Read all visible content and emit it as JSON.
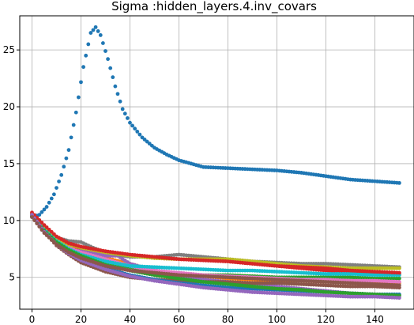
{
  "chart_data": {
    "type": "scatter",
    "title": "Sigma :hidden_layers.4.inv_covars",
    "xlabel": "",
    "ylabel": "",
    "xlim": [
      -5,
      156
    ],
    "ylim": [
      2.2,
      28.0
    ],
    "xticks": [
      0,
      20,
      40,
      60,
      80,
      100,
      120,
      140
    ],
    "yticks": [
      5,
      10,
      15,
      20,
      25
    ],
    "grid": true,
    "series": [
      {
        "color": "#1f77b4",
        "points": [
          [
            0,
            10.3
          ],
          [
            3,
            10.5
          ],
          [
            6,
            11.2
          ],
          [
            9,
            12.3
          ],
          [
            12,
            14
          ],
          [
            15,
            16.2
          ],
          [
            18,
            19.5
          ],
          [
            21,
            23.5
          ],
          [
            24,
            26.5
          ],
          [
            26,
            27.0
          ],
          [
            28,
            26.3
          ],
          [
            31,
            24.2
          ],
          [
            34,
            21.8
          ],
          [
            37,
            19.8
          ],
          [
            40,
            18.6
          ],
          [
            45,
            17.3
          ],
          [
            50,
            16.4
          ],
          [
            55,
            15.8
          ],
          [
            60,
            15.3
          ],
          [
            70,
            14.7
          ],
          [
            80,
            14.6
          ],
          [
            90,
            14.5
          ],
          [
            100,
            14.4
          ],
          [
            110,
            14.2
          ],
          [
            120,
            13.9
          ],
          [
            130,
            13.6
          ],
          [
            140,
            13.45
          ],
          [
            150,
            13.3
          ]
        ]
      },
      {
        "color": "#ff7f0e",
        "points": [
          [
            0,
            10.6
          ],
          [
            5,
            9.3
          ],
          [
            10,
            8.3
          ],
          [
            15,
            7.7
          ],
          [
            20,
            7.3
          ],
          [
            30,
            6.7
          ],
          [
            40,
            6.2
          ],
          [
            50,
            5.6
          ],
          [
            60,
            5.3
          ],
          [
            70,
            5.1
          ],
          [
            80,
            4.9
          ],
          [
            90,
            4.8
          ],
          [
            100,
            4.7
          ],
          [
            110,
            4.7
          ],
          [
            120,
            4.6
          ],
          [
            130,
            4.6
          ],
          [
            140,
            4.5
          ],
          [
            150,
            4.5
          ]
        ]
      },
      {
        "color": "#2ca02c",
        "points": [
          [
            0,
            10.5
          ],
          [
            5,
            9.2
          ],
          [
            10,
            8.2
          ],
          [
            15,
            7.6
          ],
          [
            20,
            7.1
          ],
          [
            30,
            6.4
          ],
          [
            40,
            5.9
          ],
          [
            50,
            5.6
          ],
          [
            60,
            5.3
          ],
          [
            70,
            5.2
          ],
          [
            80,
            5.2
          ],
          [
            90,
            5.1
          ],
          [
            100,
            5.0
          ],
          [
            110,
            5.0
          ],
          [
            120,
            5.0
          ],
          [
            130,
            5.0
          ],
          [
            140,
            4.9
          ],
          [
            150,
            4.9
          ]
        ]
      },
      {
        "color": "#d62728",
        "points": [
          [
            0,
            10.5
          ],
          [
            5,
            9.3
          ],
          [
            10,
            8.3
          ],
          [
            15,
            7.8
          ],
          [
            20,
            7.5
          ],
          [
            30,
            7.2
          ],
          [
            40,
            6.9
          ],
          [
            50,
            6.7
          ],
          [
            60,
            6.6
          ],
          [
            70,
            6.5
          ],
          [
            80,
            6.4
          ],
          [
            90,
            6.2
          ],
          [
            100,
            6.0
          ],
          [
            110,
            5.8
          ],
          [
            120,
            5.6
          ],
          [
            130,
            5.5
          ],
          [
            140,
            5.4
          ],
          [
            150,
            5.3
          ]
        ]
      },
      {
        "color": "#9467bd",
        "points": [
          [
            0,
            10.4
          ],
          [
            5,
            9.1
          ],
          [
            10,
            8.1
          ],
          [
            15,
            7.4
          ],
          [
            20,
            7.3
          ],
          [
            30,
            6.9
          ],
          [
            35,
            6.9
          ],
          [
            40,
            6.2
          ],
          [
            50,
            5.6
          ],
          [
            60,
            5.1
          ],
          [
            70,
            4.8
          ],
          [
            80,
            4.6
          ],
          [
            90,
            4.4
          ],
          [
            100,
            4.2
          ],
          [
            110,
            4.0
          ],
          [
            120,
            3.8
          ],
          [
            130,
            3.6
          ],
          [
            140,
            3.5
          ],
          [
            150,
            3.4
          ]
        ]
      },
      {
        "color": "#8c564b",
        "points": [
          [
            0,
            10.5
          ],
          [
            5,
            9.0
          ],
          [
            10,
            7.8
          ],
          [
            15,
            7.0
          ],
          [
            20,
            6.3
          ],
          [
            30,
            5.5
          ],
          [
            40,
            5.0
          ],
          [
            50,
            4.8
          ],
          [
            60,
            4.7
          ],
          [
            70,
            4.6
          ],
          [
            80,
            4.6
          ],
          [
            90,
            4.5
          ],
          [
            100,
            4.5
          ],
          [
            110,
            4.4
          ],
          [
            120,
            4.3
          ],
          [
            130,
            4.2
          ],
          [
            140,
            4.2
          ],
          [
            150,
            4.1
          ]
        ]
      },
      {
        "color": "#e377c2",
        "points": [
          [
            0,
            10.6
          ],
          [
            5,
            9.3
          ],
          [
            10,
            8.3
          ],
          [
            15,
            7.6
          ],
          [
            20,
            7.2
          ],
          [
            30,
            6.6
          ],
          [
            40,
            6.0
          ],
          [
            50,
            5.6
          ],
          [
            60,
            5.4
          ],
          [
            70,
            5.2
          ],
          [
            80,
            5.1
          ],
          [
            90,
            5.0
          ],
          [
            100,
            4.9
          ],
          [
            110,
            4.8
          ],
          [
            120,
            4.8
          ],
          [
            130,
            4.7
          ],
          [
            140,
            4.7
          ],
          [
            150,
            4.6
          ]
        ]
      },
      {
        "color": "#7f7f7f",
        "points": [
          [
            0,
            10.5
          ],
          [
            5,
            9.4
          ],
          [
            10,
            8.5
          ],
          [
            15,
            8.2
          ],
          [
            20,
            8.1
          ],
          [
            25,
            7.6
          ],
          [
            30,
            7.2
          ],
          [
            40,
            6.8
          ],
          [
            50,
            6.8
          ],
          [
            60,
            7.0
          ],
          [
            70,
            6.8
          ],
          [
            80,
            6.6
          ],
          [
            90,
            6.4
          ],
          [
            100,
            6.3
          ],
          [
            110,
            6.2
          ],
          [
            120,
            6.2
          ],
          [
            130,
            6.1
          ],
          [
            140,
            6.0
          ],
          [
            150,
            5.9
          ]
        ]
      },
      {
        "color": "#bcbd22",
        "points": [
          [
            0,
            10.6
          ],
          [
            5,
            9.4
          ],
          [
            10,
            8.4
          ],
          [
            15,
            7.9
          ],
          [
            20,
            7.6
          ],
          [
            30,
            7.2
          ],
          [
            40,
            6.9
          ],
          [
            50,
            6.7
          ],
          [
            60,
            6.6
          ],
          [
            70,
            6.6
          ],
          [
            80,
            6.6
          ],
          [
            90,
            6.4
          ],
          [
            100,
            6.2
          ],
          [
            110,
            6.0
          ],
          [
            120,
            5.9
          ],
          [
            130,
            5.8
          ],
          [
            140,
            5.8
          ],
          [
            150,
            5.8
          ]
        ]
      },
      {
        "color": "#17becf",
        "points": [
          [
            0,
            10.4
          ],
          [
            5,
            9.2
          ],
          [
            10,
            8.2
          ],
          [
            15,
            7.5
          ],
          [
            20,
            7.0
          ],
          [
            30,
            6.4
          ],
          [
            40,
            6.0
          ],
          [
            50,
            5.9
          ],
          [
            60,
            5.8
          ],
          [
            70,
            5.7
          ],
          [
            80,
            5.6
          ],
          [
            90,
            5.6
          ],
          [
            100,
            5.5
          ],
          [
            110,
            5.4
          ],
          [
            120,
            5.3
          ],
          [
            130,
            5.3
          ],
          [
            140,
            5.2
          ],
          [
            150,
            5.2
          ]
        ]
      },
      {
        "color": "#1f77b4",
        "points": [
          [
            0,
            10.5
          ],
          [
            5,
            9.1
          ],
          [
            10,
            8.0
          ],
          [
            15,
            7.2
          ],
          [
            20,
            6.6
          ],
          [
            30,
            5.8
          ],
          [
            40,
            5.2
          ],
          [
            50,
            4.8
          ],
          [
            60,
            4.5
          ],
          [
            70,
            4.3
          ],
          [
            80,
            4.1
          ],
          [
            90,
            4.0
          ],
          [
            100,
            3.9
          ],
          [
            110,
            3.8
          ],
          [
            120,
            3.7
          ],
          [
            130,
            3.6
          ],
          [
            140,
            3.5
          ],
          [
            150,
            3.5
          ]
        ]
      },
      {
        "color": "#2ca02c",
        "points": [
          [
            0,
            10.4
          ],
          [
            5,
            9.1
          ],
          [
            10,
            8.1
          ],
          [
            15,
            7.4
          ],
          [
            20,
            6.9
          ],
          [
            30,
            6.1
          ],
          [
            40,
            5.6
          ],
          [
            50,
            5.2
          ],
          [
            60,
            4.9
          ],
          [
            70,
            4.6
          ],
          [
            80,
            4.4
          ],
          [
            90,
            4.2
          ],
          [
            100,
            4.0
          ],
          [
            110,
            3.9
          ],
          [
            120,
            3.7
          ],
          [
            130,
            3.6
          ],
          [
            140,
            3.5
          ],
          [
            150,
            3.4
          ]
        ]
      },
      {
        "color": "#d62728",
        "points": [
          [
            0,
            10.7
          ],
          [
            5,
            9.6
          ],
          [
            10,
            8.6
          ],
          [
            15,
            8.0
          ],
          [
            20,
            7.7
          ],
          [
            30,
            7.3
          ],
          [
            40,
            7.0
          ],
          [
            50,
            6.8
          ],
          [
            60,
            6.6
          ],
          [
            70,
            6.5
          ],
          [
            80,
            6.4
          ],
          [
            90,
            6.2
          ],
          [
            100,
            6.0
          ],
          [
            110,
            5.9
          ],
          [
            120,
            5.8
          ],
          [
            130,
            5.6
          ],
          [
            140,
            5.5
          ],
          [
            150,
            5.4
          ]
        ]
      },
      {
        "color": "#9467bd",
        "points": [
          [
            0,
            10.5
          ],
          [
            5,
            9.0
          ],
          [
            10,
            7.9
          ],
          [
            15,
            7.1
          ],
          [
            20,
            6.5
          ],
          [
            30,
            5.7
          ],
          [
            40,
            5.1
          ],
          [
            50,
            4.7
          ],
          [
            60,
            4.4
          ],
          [
            70,
            4.1
          ],
          [
            80,
            3.9
          ],
          [
            90,
            3.7
          ],
          [
            100,
            3.6
          ],
          [
            110,
            3.5
          ],
          [
            120,
            3.4
          ],
          [
            130,
            3.3
          ],
          [
            140,
            3.3
          ],
          [
            150,
            3.2
          ]
        ]
      },
      {
        "color": "#8c564b",
        "points": [
          [
            0,
            10.3
          ],
          [
            5,
            8.9
          ],
          [
            10,
            7.9
          ],
          [
            15,
            7.2
          ],
          [
            20,
            6.7
          ],
          [
            30,
            6.0
          ],
          [
            40,
            5.6
          ],
          [
            50,
            5.4
          ],
          [
            60,
            5.2
          ],
          [
            70,
            5.1
          ],
          [
            80,
            5.0
          ],
          [
            90,
            4.9
          ],
          [
            100,
            4.8
          ],
          [
            110,
            4.7
          ],
          [
            120,
            4.6
          ],
          [
            130,
            4.5
          ],
          [
            140,
            4.4
          ],
          [
            150,
            4.3
          ]
        ]
      }
    ]
  }
}
